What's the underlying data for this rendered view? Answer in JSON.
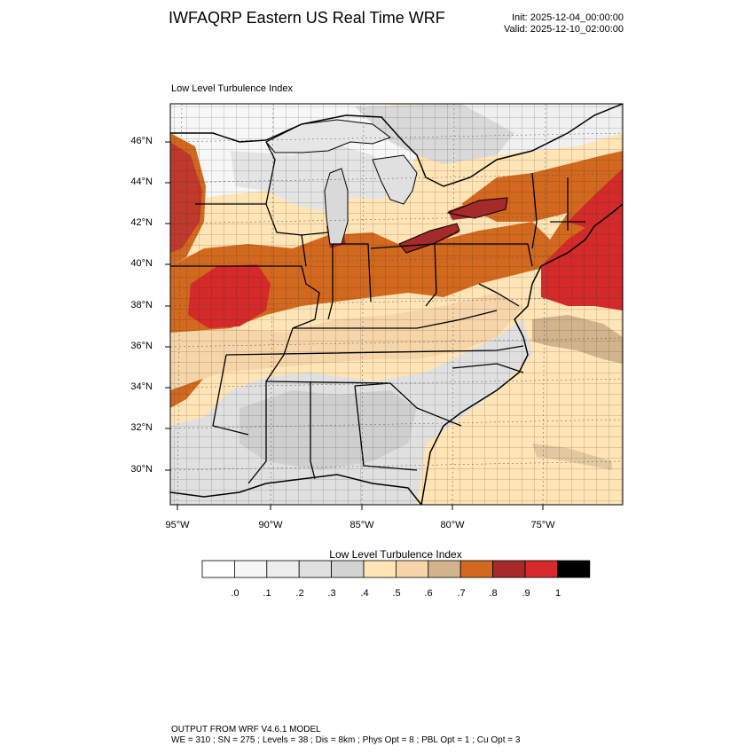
{
  "header": {
    "title": "IWFAQRP Eastern US Real Time WRF",
    "init": "Init: 2025-12-04_00:00:00",
    "valid": "Valid: 2025-12-10_02:00:00"
  },
  "map": {
    "field_title": "Low Level Turbulence Index",
    "lat_labels": [
      "46°N",
      "44°N",
      "42°N",
      "40°N",
      "38°N",
      "36°N",
      "34°N",
      "32°N",
      "30°N"
    ],
    "lon_labels": [
      "95°W",
      "90°W",
      "85°W",
      "80°W",
      "75°W"
    ]
  },
  "colorbar": {
    "title": "Low Level Turbulence Index",
    "labels": [
      ".0",
      ".1",
      ".2",
      ".3",
      ".4",
      ".5",
      ".6",
      ".7",
      ".8",
      ".9",
      "1"
    ],
    "colors": [
      "#ffffff",
      "#f7f7f7",
      "#eeeeee",
      "#e0e0e0",
      "#d3d3d3",
      "#ffe4b5",
      "#f6d5a8",
      "#d2b48c",
      "#d2691e",
      "#a52a2a",
      "#d42a2a",
      "#000000"
    ]
  },
  "footer": {
    "line1": "OUTPUT FROM WRF V4.6.1 MODEL",
    "line2": "WE = 310 ; SN = 275 ; Levels = 38 ; Dis = 8km ; Phys Opt = 8 ; PBL Opt = 1 ; Cu Opt = 3"
  }
}
